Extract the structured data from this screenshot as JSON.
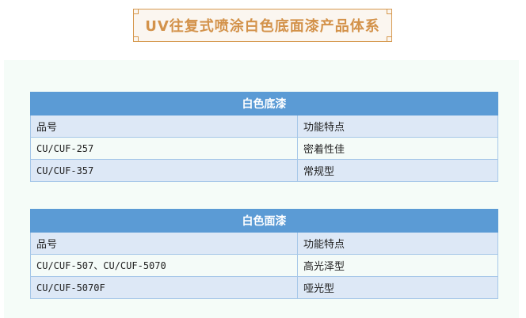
{
  "title": "UV往复式喷涂白色底面漆产品体系",
  "colors": {
    "accent": "#d3924a",
    "table_header": "#5b9bd5",
    "row_alt": "#dde8f6"
  },
  "tables": [
    {
      "title": "白色底漆",
      "headers": [
        "品号",
        "功能特点"
      ],
      "rows": [
        [
          "CU/CUF-257",
          "密着性佳"
        ],
        [
          "CU/CUF-357",
          "常规型"
        ]
      ]
    },
    {
      "title": "白色面漆",
      "headers": [
        "品号",
        "功能特点"
      ],
      "rows": [
        [
          "CU/CUF-507、CU/CUF-5070",
          "高光泽型"
        ],
        [
          "CU/CUF-5070F",
          "哑光型"
        ]
      ]
    }
  ]
}
